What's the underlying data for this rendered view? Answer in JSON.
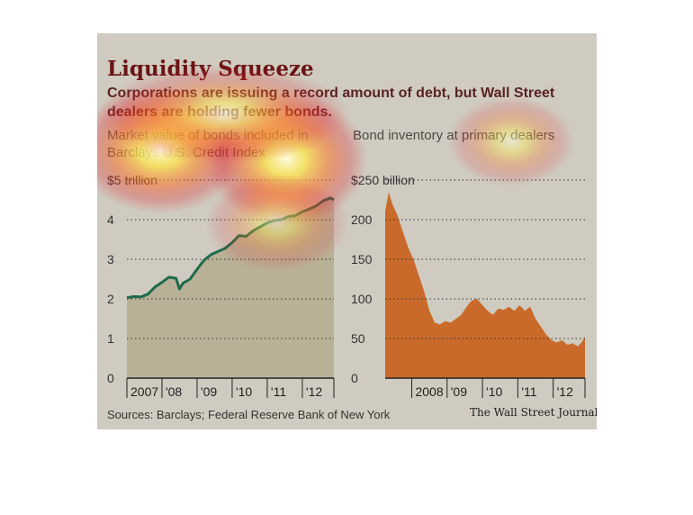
{
  "header": {
    "title": "Liquidity Squeeze",
    "subtitle": "Corporations are issuing a record amount of debt, but Wall Street dealers are holding fewer bonds."
  },
  "footer": {
    "sources": "Sources: Barclays; Federal Reserve Bank of New York",
    "publisher": "The Wall Street Journal"
  },
  "colors": {
    "panel_bg": "#cfcbc0",
    "left_area": "#b9b197",
    "left_line": "#1e6b4a",
    "right_area": "#c96a2a"
  },
  "chart_data": [
    {
      "type": "area",
      "title": "Market value of bonds included in Barclays U.S. Credit Index",
      "y_unit_label": "$5 trillion",
      "ylim": [
        0,
        5
      ],
      "yticks": [
        0,
        1,
        2,
        3,
        4,
        5
      ],
      "ytick_labels": [
        "0",
        "1",
        "2",
        "3",
        "4",
        "$5 trillion"
      ],
      "xlim": [
        2007.0,
        2012.9
      ],
      "xticks": [
        {
          "label": "2007",
          "x": 2007.0
        },
        {
          "label": "'08",
          "x": 2008.0
        },
        {
          "label": "'09",
          "x": 2009.0
        },
        {
          "label": "'10",
          "x": 2010.0
        },
        {
          "label": "'11",
          "x": 2011.0
        },
        {
          "label": "'12",
          "x": 2012.0
        }
      ],
      "grid": true,
      "series": [
        {
          "x": [
            2007.0,
            2007.2,
            2007.4,
            2007.6,
            2007.8,
            2008.0,
            2008.2,
            2008.4,
            2008.5,
            2008.6,
            2008.8,
            2009.0,
            2009.2,
            2009.4,
            2009.6,
            2009.8,
            2010.0,
            2010.2,
            2010.4,
            2010.6,
            2010.8,
            2011.0,
            2011.2,
            2011.4,
            2011.6,
            2011.8,
            2012.0,
            2012.2,
            2012.4,
            2012.6,
            2012.8,
            2012.9
          ],
          "y": [
            2.03,
            2.06,
            2.05,
            2.12,
            2.3,
            2.42,
            2.55,
            2.52,
            2.25,
            2.4,
            2.5,
            2.75,
            2.98,
            3.12,
            3.2,
            3.28,
            3.42,
            3.6,
            3.58,
            3.72,
            3.82,
            3.92,
            3.98,
            4.0,
            4.08,
            4.1,
            4.2,
            4.27,
            4.35,
            4.48,
            4.55,
            4.5
          ]
        }
      ]
    },
    {
      "type": "area",
      "title": "Bond inventory at primary dealers",
      "y_unit_label": "$250 billion",
      "ylim": [
        0,
        250
      ],
      "yticks": [
        0,
        50,
        100,
        150,
        200,
        250
      ],
      "ytick_labels": [
        "0",
        "50",
        "100",
        "150",
        "200",
        "$250 billion"
      ],
      "xlim": [
        2007.25,
        2012.9
      ],
      "xticks": [
        {
          "label": "2008",
          "x": 2008.0
        },
        {
          "label": "'09",
          "x": 2009.0
        },
        {
          "label": "'10",
          "x": 2010.0
        },
        {
          "label": "'11",
          "x": 2011.0
        },
        {
          "label": "'12",
          "x": 2012.0
        }
      ],
      "grid": true,
      "series": [
        {
          "x": [
            2007.25,
            2007.35,
            2007.45,
            2007.6,
            2007.75,
            2007.9,
            2008.05,
            2008.2,
            2008.35,
            2008.5,
            2008.65,
            2008.8,
            2008.95,
            2009.1,
            2009.25,
            2009.4,
            2009.55,
            2009.7,
            2009.85,
            2010.0,
            2010.15,
            2010.3,
            2010.45,
            2010.6,
            2010.75,
            2010.9,
            2011.05,
            2011.2,
            2011.35,
            2011.5,
            2011.65,
            2011.8,
            2011.95,
            2012.1,
            2012.25,
            2012.4,
            2012.55,
            2012.7,
            2012.8,
            2012.9
          ],
          "y": [
            210,
            235,
            220,
            205,
            185,
            165,
            150,
            130,
            110,
            85,
            70,
            68,
            72,
            70,
            75,
            80,
            90,
            98,
            100,
            92,
            85,
            80,
            88,
            86,
            90,
            85,
            92,
            85,
            90,
            75,
            65,
            55,
            48,
            45,
            48,
            42,
            44,
            40,
            45,
            52
          ]
        }
      ]
    }
  ]
}
